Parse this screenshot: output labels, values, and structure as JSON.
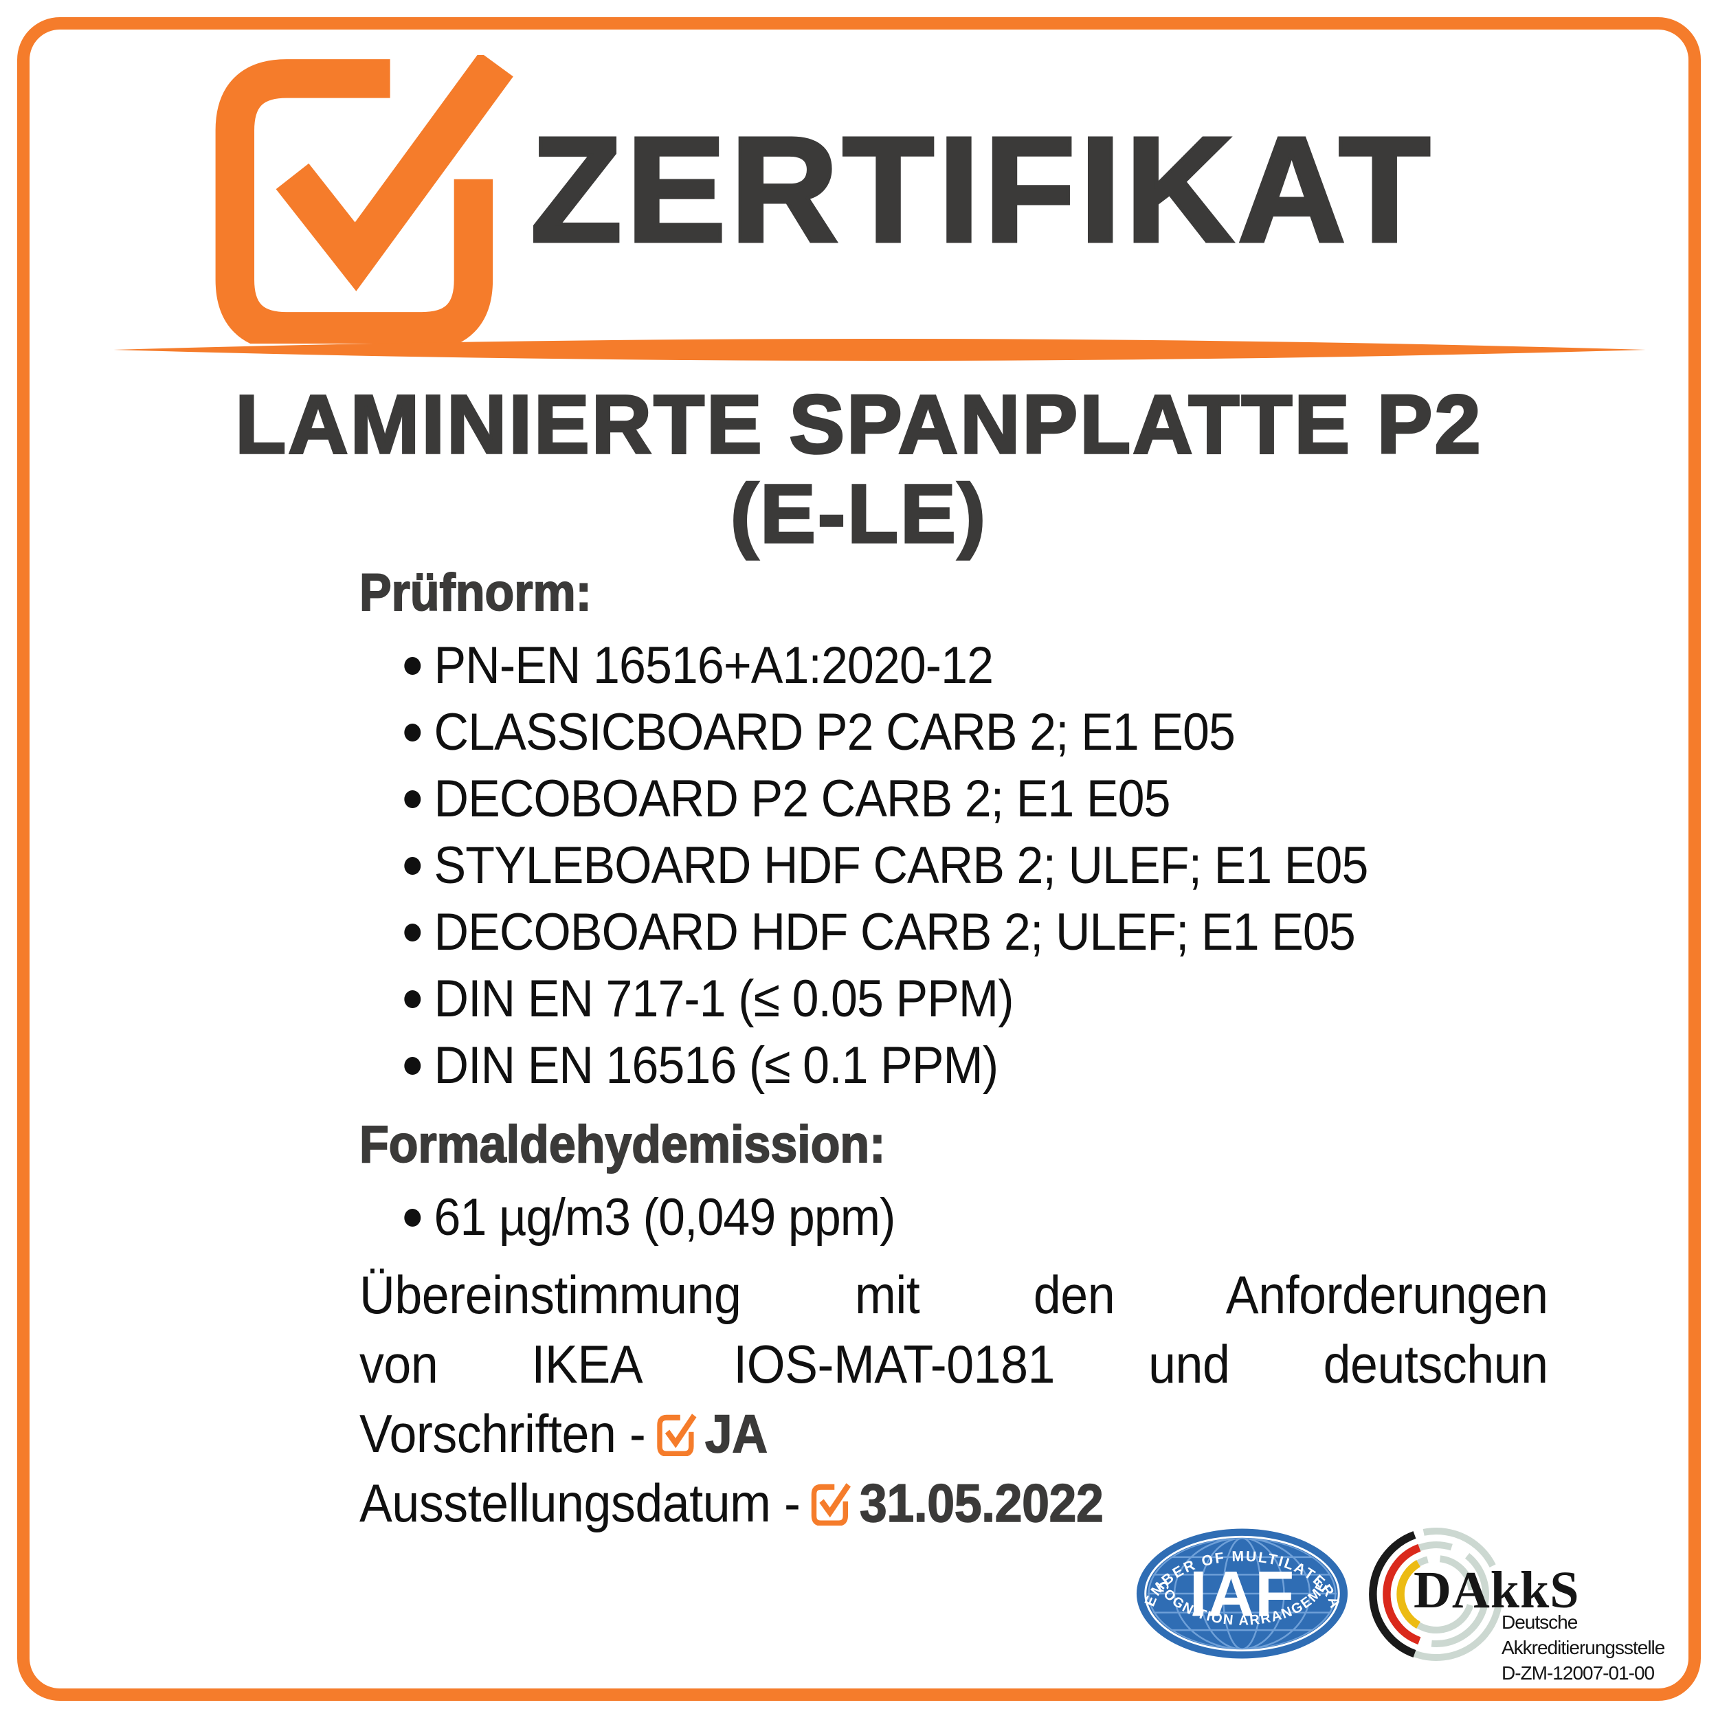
{
  "certificate": {
    "title": "ZERTIFIKAT",
    "product_line1": "LAMINIERTE SPANPLATTE P2",
    "product_line2": "(E-LE)",
    "sections": [
      {
        "label": "Prüfnorm:",
        "items": [
          "PN-EN 16516+A1:2020-12",
          "CLASSICBOARD P2 CARB 2; E1 E05",
          "DECOBOARD P2 CARB 2; E1 E05",
          "STYLEBOARD HDF CARB 2; ULEF; E1 E05",
          "DECOBOARD HDF CARB 2; ULEF; E1 E05",
          "DIN EN 717-1 (≤ 0.05 PPM)",
          "DIN EN 16516 (≤ 0.1 PPM)"
        ]
      },
      {
        "label": "Formaldehydemission:",
        "items": [
          "61 µg/m3 (0,049 ppm)"
        ]
      }
    ],
    "compliance": {
      "line1": "Übereinstimmung mit den Anforderungen",
      "line2": "von IKEA IOS-MAT-0181 und deutschun",
      "line3_prefix": "Vorschriften -",
      "answer": "JA"
    },
    "issue": {
      "label": "Ausstellungsdatum -",
      "date": "31.05.2022"
    }
  },
  "logos": {
    "iaf": {
      "acronym": "IAF",
      "arc_top": "MEMBER OF MULTILATERAL",
      "arc_bottom": "RECOGNITION ARRANGEMENT"
    },
    "dakks": {
      "wordmark": "DAkkS",
      "line1": "Deutsche",
      "line2": "Akkreditierungsstelle",
      "line3": "D-ZM-12007-01-00"
    }
  },
  "colors": {
    "accent_orange": "#F57C2B",
    "title_gray": "#3B3A39",
    "body_black": "#101010",
    "iaf_blue": "#2F6DB4",
    "iaf_grid_blue": "#6FA0D8",
    "dakks_gray": "#CCD8D1",
    "dakks_red": "#DA291C",
    "dakks_yellow": "#ECBB13"
  }
}
